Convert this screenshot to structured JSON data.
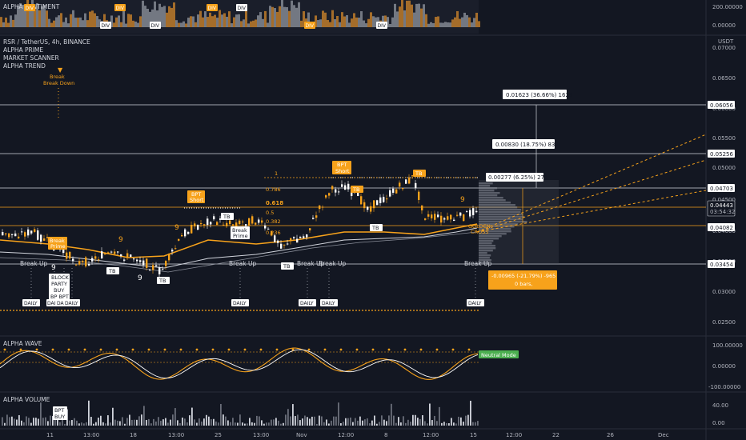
{
  "sentiment_panel": {
    "title": "ALPHA SENTIMENT",
    "axis": [
      "200.00000",
      "0.00000"
    ],
    "div_labels": [
      "DIV",
      "DIV",
      "DIV",
      "DIV",
      "DIV",
      "DIV",
      "DIV",
      "DIV"
    ]
  },
  "main": {
    "symbol": "RSR / TetherUS, 4h, BINANCE",
    "indicators": [
      "ALPHA PRIME",
      "MARKET SCANNER",
      "ALPHA TREND"
    ],
    "currency": "USDT",
    "price_axis": [
      "0.07000",
      "0.06500",
      "0.06000",
      "0.05500",
      "0.05000",
      "0.04500",
      "0.04000",
      "0.03500",
      "0.03000",
      "0.02500"
    ],
    "price_tags": [
      {
        "text": "0.06056",
        "kind": "line"
      },
      {
        "text": "0.05256",
        "kind": "line"
      },
      {
        "text": "0.04703",
        "kind": "line"
      },
      {
        "text": "0.04443",
        "kind": "current"
      },
      {
        "text": "03:54:32",
        "kind": "countdown"
      },
      {
        "text": "0.04082",
        "kind": "line"
      },
      {
        "text": "0.03454",
        "kind": "line"
      }
    ],
    "measure_up": [
      "0.01623 (36.66%) 1623",
      "0.00830 (18.75%) 830",
      "0.00277 (6.25%) 277"
    ],
    "measure_down": [
      "-0.00965 (-21.79%) -965",
      "0 bars,"
    ],
    "fib_labels": [
      "1",
      "0.786",
      "0.618",
      "0.5",
      "0.382",
      "0.236"
    ],
    "bpt_short": [
      "BPT",
      "Short",
      "BPT",
      "Short"
    ],
    "break_down": [
      "Break",
      "Break Down"
    ],
    "break_prime": [
      "Break",
      "Prime"
    ],
    "break_prime2": [
      "Break",
      "Prime"
    ],
    "break_up_labels": [
      "Break Up",
      "Break Up",
      "Break Up",
      "Break Up",
      "Break Up"
    ],
    "tb_labels": [
      "TB",
      "TB",
      "TB",
      "TB",
      "TB",
      "TB",
      "TB"
    ],
    "daily_labels": [
      "DAILY",
      "DAILY",
      "DAILY",
      "DAILY",
      "DAILY",
      "DAILY",
      "DAILY",
      "DAILY"
    ],
    "buy_block": [
      "BLOCK",
      "PARTY",
      "BUY",
      "BP BPT"
    ],
    "nine": [
      "9",
      "9",
      "9",
      "9",
      "9"
    ],
    "golden_cross": [
      "GOLDEN",
      "CROSS"
    ]
  },
  "wave_panel": {
    "title": "ALPHA WAVE",
    "axis": [
      "100.00000",
      "0.00000",
      "-100.00000"
    ],
    "tag": "Neutral Mode"
  },
  "volume_panel": {
    "title": "ALPHA VOLUME",
    "axis": [
      "40.00",
      "0.00"
    ],
    "buy_label": [
      "BPT",
      "BUY"
    ]
  },
  "time_axis": [
    "11",
    "13:00",
    "18",
    "13:00",
    "25",
    "13:00",
    "Nov",
    "12:00",
    "8",
    "12:00",
    "15",
    "12:00",
    "22",
    "26",
    "Dec"
  ],
  "colors": {
    "background": "#131722",
    "orange": "#f7a21b",
    "white": "#ffffff",
    "grid": "#1e2230"
  }
}
